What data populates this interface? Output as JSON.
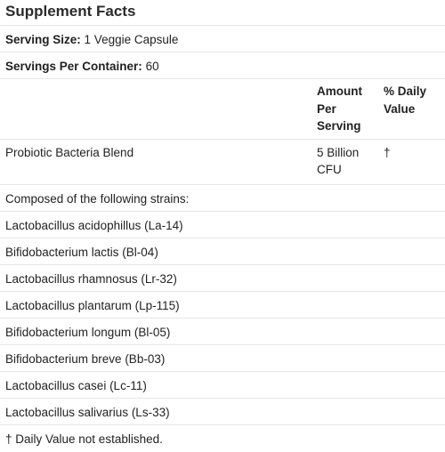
{
  "title": "Supplement Facts",
  "serving_size": {
    "label": "Serving Size:",
    "value": "1 Veggie Capsule"
  },
  "servings_per_container": {
    "label": "Servings Per Container:",
    "value": "60"
  },
  "columns": {
    "amount": "Amount Per Serving",
    "daily_value": "% Daily Value"
  },
  "blend": {
    "name": "Probiotic Bacteria Blend",
    "amount": "5 Billion CFU",
    "daily_value": "†"
  },
  "composed_label": "Composed of the following strains:",
  "strains": [
    "Lactobacillus acidophillus (La-14)",
    "Bifidobacterium lactis (Bl-04)",
    "Lactobacillus rhamnosus (Lr-32)",
    "Lactobacillus plantarum (Lp-115)",
    "Bifidobacterium longum (Bl-05)",
    "Bifidobacterium breve (Bb-03)",
    "Lactobacillus casei (Lc-11)",
    "Lactobacillus salivarius (Ls-33)"
  ],
  "footnote": "† Daily Value not established."
}
